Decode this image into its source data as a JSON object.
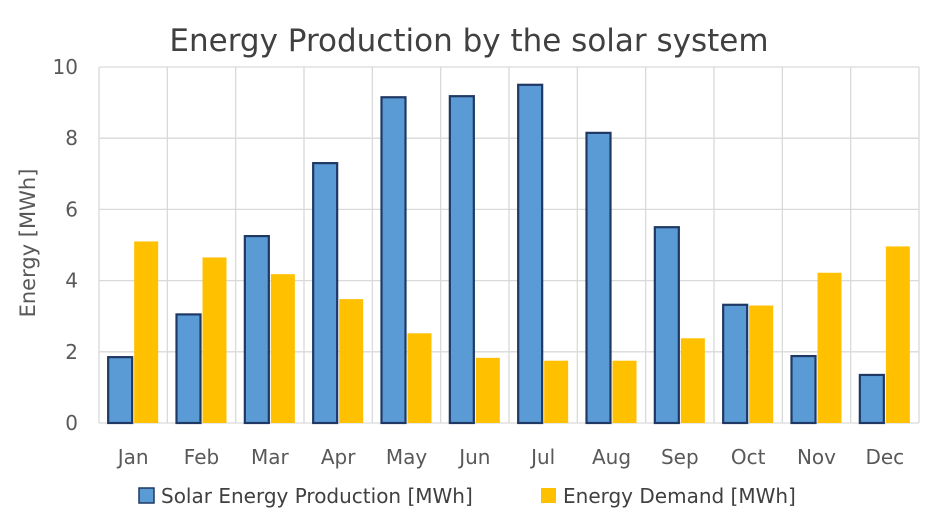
{
  "colors": {
    "series_0_fill": "#5B9BD5",
    "series_0_stroke": "#1F3864",
    "series_1_fill": "#FFC000",
    "grid": "#D9D9D9",
    "text": "#595959",
    "title": "#404040"
  },
  "chart_data": {
    "type": "bar",
    "title": "Energy Production by the solar system",
    "xlabel": "",
    "ylabel": "Energy [MWh]",
    "ylim": [
      0,
      10
    ],
    "yticks": [
      "0",
      "2",
      "4",
      "6",
      "8",
      "10"
    ],
    "grid": true,
    "legend_position": "bottom",
    "categories": [
      "Jan",
      "Feb",
      "Mar",
      "Apr",
      "May",
      "Jun",
      "Jul",
      "Aug",
      "Sep",
      "Oct",
      "Nov",
      "Dec"
    ],
    "series": [
      {
        "name": "Solar Energy Production [MWh]",
        "values": [
          1.85,
          3.05,
          5.25,
          7.3,
          9.15,
          9.18,
          9.5,
          8.15,
          5.5,
          3.32,
          1.88,
          1.35
        ]
      },
      {
        "name": "Energy Demand [MWh]",
        "values": [
          5.1,
          4.65,
          4.18,
          3.48,
          2.52,
          1.83,
          1.75,
          1.75,
          2.38,
          3.3,
          4.22,
          4.96
        ]
      }
    ]
  }
}
